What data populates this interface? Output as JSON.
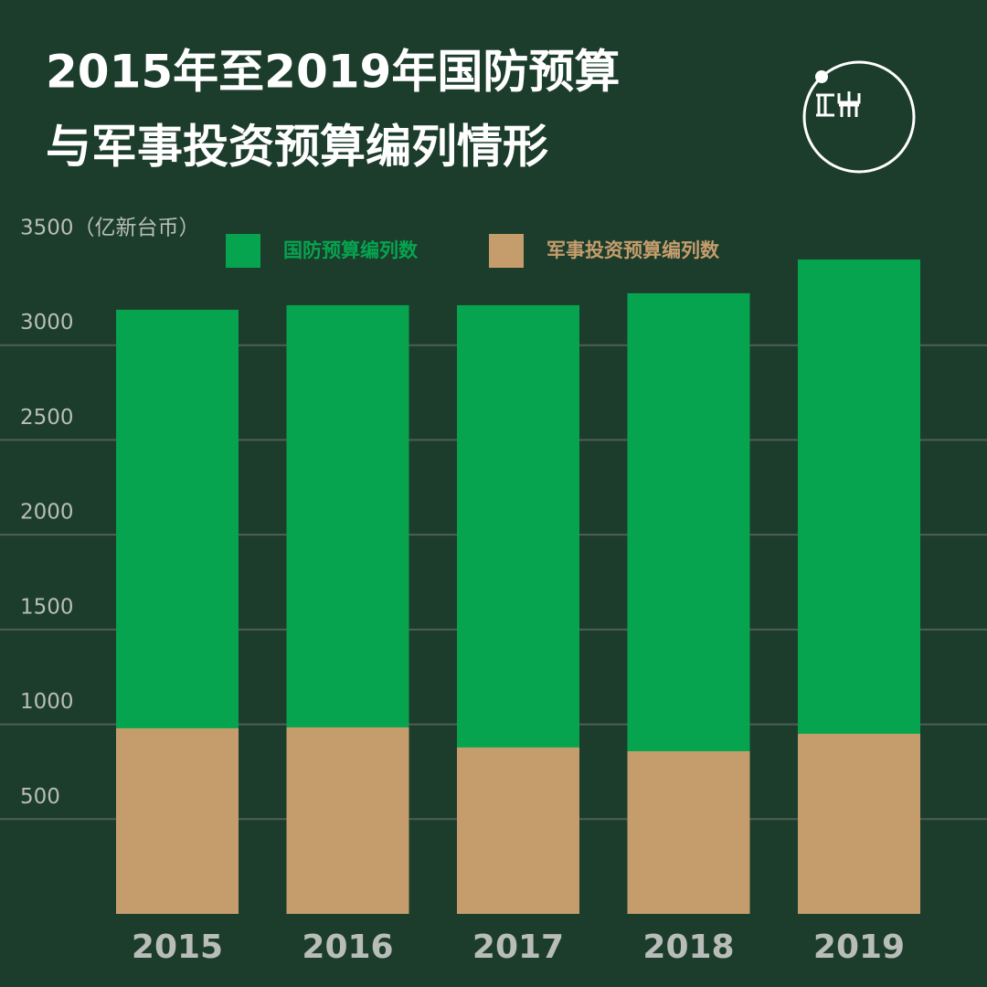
{
  "chart_data": {
    "type": "bar",
    "title": [
      "2015年至2019年国防预算",
      "与军事投资预算编列情形"
    ],
    "categories": [
      "2015",
      "2016",
      "2017",
      "2018",
      "2019"
    ],
    "series": [
      {
        "name": "国防预算编列数",
        "color": "#06a44f",
        "values": [
          3187,
          3211,
          3211,
          3274,
          3452
        ]
      },
      {
        "name": "军事投资预算编列数",
        "color": "#c59d6d",
        "values": [
          979,
          984,
          878,
          858,
          950
        ]
      }
    ],
    "ylim": [
      0,
      3500
    ],
    "yticks": [
      500,
      1000,
      1500,
      2000,
      2500,
      3000,
      {
        "value": 3500,
        "label": "3500（亿新台币）"
      }
    ],
    "grid": true
  }
}
